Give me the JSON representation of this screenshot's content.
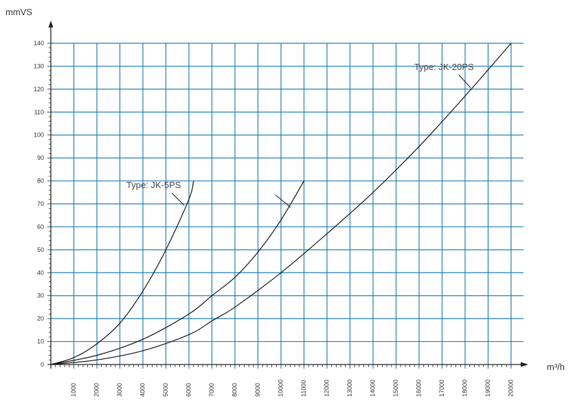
{
  "chart_data": {
    "type": "line",
    "ylabel": "mmVS",
    "xlabel": "m³/h",
    "xlim": [
      0,
      20000
    ],
    "ylim": [
      0,
      140
    ],
    "grid": true,
    "x_ticks": [
      1000,
      2000,
      3000,
      4000,
      5000,
      6000,
      7000,
      8000,
      9000,
      10000,
      11000,
      12000,
      13000,
      14000,
      15000,
      16000,
      17000,
      18000,
      19000,
      20000
    ],
    "y_ticks": [
      0,
      10,
      20,
      30,
      40,
      50,
      60,
      70,
      80,
      90,
      100,
      110,
      120,
      130,
      140
    ],
    "colors": {
      "grid": "#1f7fb6",
      "axis": "#222222",
      "curve": "#111111"
    },
    "series": [
      {
        "name": "Type: JK-5PS",
        "x": [
          0,
          1000,
          2000,
          3000,
          4000,
          5000,
          6000,
          6200
        ],
        "y": [
          0,
          3,
          9,
          18,
          32,
          50,
          72,
          80
        ]
      },
      {
        "name": "",
        "x": [
          0,
          2000,
          4000,
          6000,
          7000,
          8000,
          9000,
          10000,
          11000
        ],
        "y": [
          0,
          4,
          11,
          22,
          30,
          38,
          49,
          63,
          80
        ]
      },
      {
        "name": "Type: JK-20PS",
        "x": [
          0,
          2000,
          4000,
          6000,
          7000,
          8000,
          10000,
          12000,
          14000,
          16000,
          18000,
          20000
        ],
        "y": [
          0,
          2,
          6,
          13,
          19,
          25,
          40,
          57,
          75,
          95,
          117,
          140
        ]
      }
    ],
    "annotations": [
      {
        "text": "Type: JK-5PS",
        "series": 0
      },
      {
        "text": "Type: JK-20PS",
        "series": 2
      }
    ]
  }
}
